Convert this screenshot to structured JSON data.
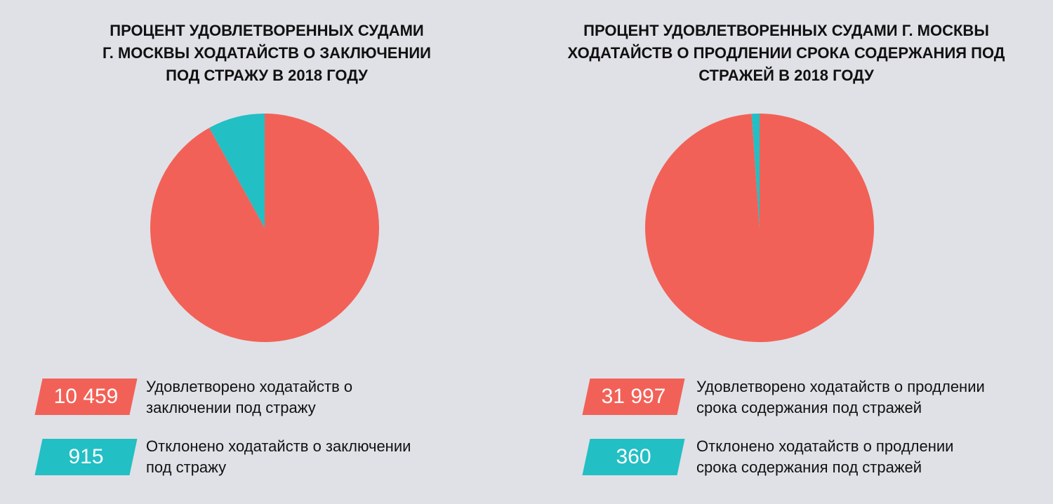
{
  "colors": {
    "granted": "#f26157",
    "rejected": "#22bfc4",
    "background": "#dfe1e6"
  },
  "chart_data": [
    {
      "type": "pie",
      "title_lines": [
        "ПРОЦЕНТ УДОВЛЕТВОРЕННЫХ СУДАМИ",
        "Г. МОСКВЫ ХОДАТАЙСТВ О ЗАКЛЮЧЕНИИ",
        "ПОД СТРАЖУ В 2018 ГОДУ"
      ],
      "slices": [
        {
          "label": "Удовлетворено ходатайств о заключении под стражу",
          "label_lines": [
            "Удовлетворено ходатайств о",
            "заключении под стражу"
          ],
          "value": 10459,
          "display": "10 459",
          "color": "#f26157"
        },
        {
          "label": "Отклонено ходатайств о заключении под стражу",
          "label_lines": [
            "Отклонено ходатайств о заключении",
            "под стражу"
          ],
          "value": 915,
          "display": "915",
          "color": "#22bfc4"
        }
      ]
    },
    {
      "type": "pie",
      "title_lines": [
        "ПРОЦЕНТ УДОВЛЕТВОРЕННЫХ СУДАМИ Г. МОСКВЫ",
        "ХОДАТАЙСТВ О ПРОДЛЕНИИ СРОКА СОДЕРЖАНИЯ ПОД",
        "СТРАЖЕЙ В 2018 ГОДУ"
      ],
      "slices": [
        {
          "label": "Удовлетворено ходатайств о продлении срока содержания под стражей",
          "label_lines": [
            "Удовлетворено ходатайств о продлении",
            "срока содержания под стражей"
          ],
          "value": 31997,
          "display": "31 997",
          "color": "#f26157"
        },
        {
          "label": "Отклонено ходатайств о продлении срока содержания под стражей",
          "label_lines": [
            "Отклонено ходатайств о продлении",
            "срока содержания под стражей"
          ],
          "value": 360,
          "display": "360",
          "color": "#22bfc4"
        }
      ]
    }
  ]
}
